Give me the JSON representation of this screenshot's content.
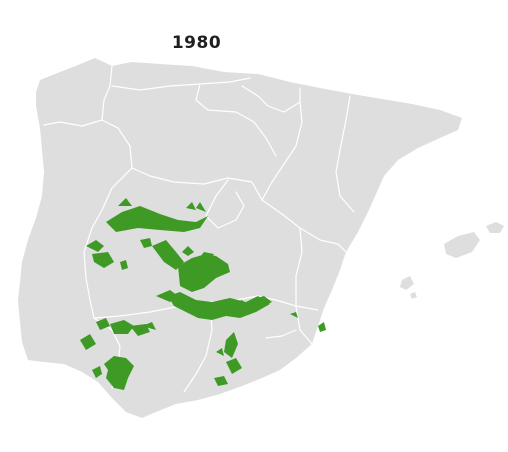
{
  "map": {
    "title": "1980",
    "land_color": "#dedede",
    "border_color": "#ffffff",
    "highlight_color": "#3e9a25"
  }
}
